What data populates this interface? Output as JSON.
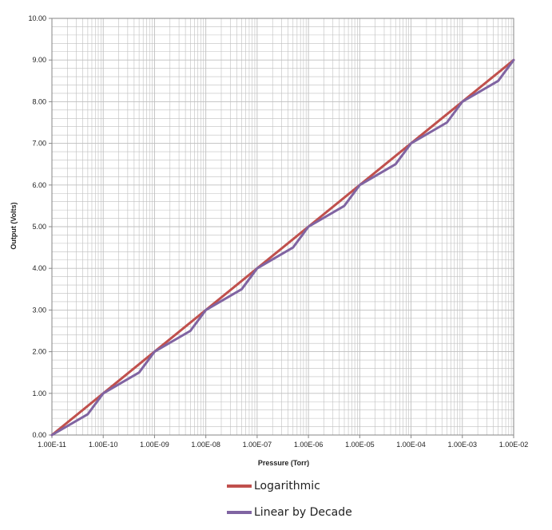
{
  "chart_data": {
    "type": "line",
    "xlabel": "Pressure (Torr)",
    "ylabel": "Output (Volts)",
    "xscale": "log",
    "xlim": [
      1e-11,
      0.01
    ],
    "ylim": [
      0,
      10
    ],
    "grid": true,
    "legend_position": "bottom",
    "x_tick_labels": [
      "1.00E-11",
      "1.00E-10",
      "1.00E-09",
      "1.00E-08",
      "1.00E-07",
      "1.00E-06",
      "1.00E-05",
      "1.00E-04",
      "1.00E-03",
      "1.00E-02"
    ],
    "y_tick_labels": [
      "0.00",
      "1.00",
      "2.00",
      "3.00",
      "4.00",
      "5.00",
      "6.00",
      "7.00",
      "8.00",
      "9.00",
      "10.00"
    ],
    "series": [
      {
        "name": "Logarithmic",
        "color": "#c0504d",
        "points": [
          [
            1e-11,
            0
          ],
          [
            1e-10,
            1
          ],
          [
            1e-09,
            2
          ],
          [
            1e-08,
            3
          ],
          [
            1e-07,
            4
          ],
          [
            1e-06,
            5
          ],
          [
            1e-05,
            6
          ],
          [
            0.0001,
            7
          ],
          [
            0.001,
            8
          ],
          [
            0.01,
            9
          ]
        ]
      },
      {
        "name": "Linear by Decade",
        "color": "#8064a2",
        "points": [
          [
            1e-11,
            0
          ],
          [
            5e-11,
            0.5
          ],
          [
            1e-10,
            1
          ],
          [
            5e-10,
            1.5
          ],
          [
            1e-09,
            2
          ],
          [
            5e-09,
            2.5
          ],
          [
            1e-08,
            3
          ],
          [
            5e-08,
            3.5
          ],
          [
            1e-07,
            4
          ],
          [
            5e-07,
            4.5
          ],
          [
            1e-06,
            5
          ],
          [
            5e-06,
            5.5
          ],
          [
            1e-05,
            6
          ],
          [
            5e-05,
            6.5
          ],
          [
            0.0001,
            7
          ],
          [
            0.0005,
            7.5
          ],
          [
            0.001,
            8
          ],
          [
            0.005,
            8.5
          ],
          [
            0.01,
            9
          ]
        ]
      }
    ]
  },
  "colors": {
    "gridline": "#bfbfbf",
    "axis": "#868686",
    "log_series": "#c0504d",
    "linear_series": "#8064a2"
  }
}
